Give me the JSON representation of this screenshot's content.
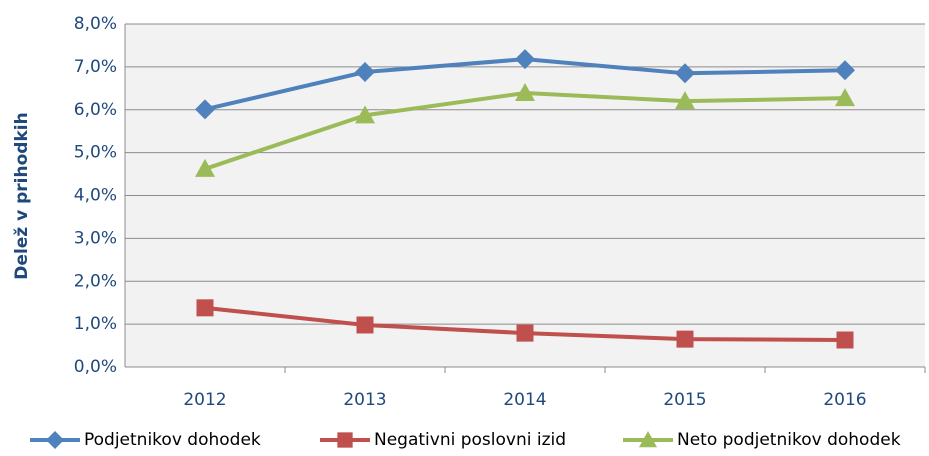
{
  "chart_data": {
    "type": "line",
    "y_label": "Delež v prihodkih",
    "categories": [
      "2012",
      "2013",
      "2014",
      "2015",
      "2016"
    ],
    "series": [
      {
        "name": "Podjetnikov dohodek",
        "color": "#4f81bd",
        "marker": "diamond",
        "values": [
          6.01,
          6.88,
          7.18,
          6.85,
          6.92
        ]
      },
      {
        "name": "Negativni poslovni izid",
        "color": "#c0504d",
        "marker": "square",
        "values": [
          1.38,
          0.98,
          0.79,
          0.65,
          0.63
        ]
      },
      {
        "name": "Neto podjetnikov dohodek",
        "color": "#9bbb59",
        "marker": "triangle",
        "values": [
          4.62,
          5.87,
          6.39,
          6.2,
          6.27
        ]
      }
    ],
    "ylim": [
      0,
      8
    ],
    "yticks": [
      {
        "value": 0,
        "label": "0,0%"
      },
      {
        "value": 1,
        "label": "1,0%"
      },
      {
        "value": 2,
        "label": "2,0%"
      },
      {
        "value": 3,
        "label": "3,0%"
      },
      {
        "value": 4,
        "label": "4,0%"
      },
      {
        "value": 5,
        "label": "5,0%"
      },
      {
        "value": 6,
        "label": "6,0%"
      },
      {
        "value": 7,
        "label": "7,0%"
      },
      {
        "value": 8,
        "label": "8,0%"
      }
    ],
    "grid": true,
    "legend": "bottom"
  }
}
